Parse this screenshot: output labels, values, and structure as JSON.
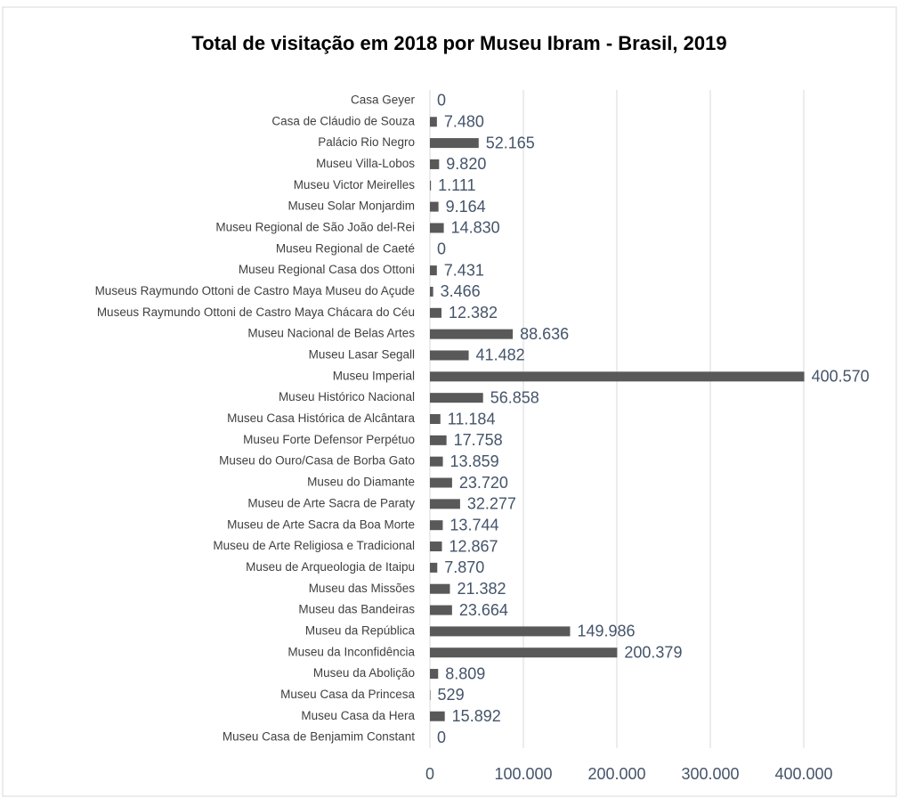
{
  "chart_data": {
    "type": "barh",
    "title": "Total de visitação em 2018 por Museu Ibram - Brasil, 2019",
    "categories": [
      "Casa Geyer",
      "Casa de Cláudio de Souza",
      "Palácio Rio Negro",
      "Museu Villa-Lobos",
      "Museu Victor Meirelles",
      "Museu Solar Monjardim",
      "Museu Regional de São João del-Rei",
      "Museu Regional de Caeté",
      "Museu Regional Casa dos Ottoni",
      "Museus Raymundo Ottoni de Castro Maya Museu do Açude",
      "Museus Raymundo Ottoni de Castro Maya Chácara do Céu",
      "Museu Nacional de Belas Artes",
      "Museu Lasar Segall",
      "Museu Imperial",
      "Museu Histórico Nacional",
      "Museu Casa Histórica de Alcântara",
      "Museu Forte Defensor Perpétuo",
      "Museu do Ouro/Casa de Borba Gato",
      "Museu do Diamante",
      "Museu de Arte Sacra de Paraty",
      "Museu de Arte Sacra da Boa Morte",
      "Museu de Arte Religiosa e Tradicional",
      "Museu de Arqueologia de Itaipu",
      "Museu das Missões",
      "Museu das Bandeiras",
      "Museu da República",
      "Museu da Inconfidência",
      "Museu da Abolição",
      "Museu Casa da Princesa",
      "Museu Casa da Hera",
      "Museu Casa de Benjamim Constant"
    ],
    "values": [
      0,
      7480,
      52165,
      9820,
      1111,
      9164,
      14830,
      0,
      7431,
      3466,
      12382,
      88636,
      41482,
      400570,
      56858,
      11184,
      17758,
      13859,
      23720,
      32277,
      13744,
      12867,
      7870,
      21382,
      23664,
      149986,
      200379,
      8809,
      529,
      15892,
      0
    ],
    "value_labels": [
      "0",
      "7.480",
      "52.165",
      "9.820",
      "1.111",
      "9.164",
      "14.830",
      "0",
      "7.431",
      "3.466",
      "12.382",
      "88.636",
      "41.482",
      "400.570",
      "56.858",
      "11.184",
      "17.758",
      "13.859",
      "23.720",
      "32.277",
      "13.744",
      "12.867",
      "7.870",
      "21.382",
      "23.664",
      "149.986",
      "200.379",
      "8.809",
      "529",
      "15.892",
      "0"
    ],
    "color": "#595959",
    "xlim": [
      0,
      400000
    ],
    "xticks": [
      0,
      {
        "value": 100000,
        "label": "100.000"
      },
      {
        "value": 200000,
        "label": "200.000"
      },
      {
        "value": 300000,
        "label": "300.000"
      },
      {
        "value": 400000,
        "label": "400.000"
      }
    ],
    "grid": true
  }
}
